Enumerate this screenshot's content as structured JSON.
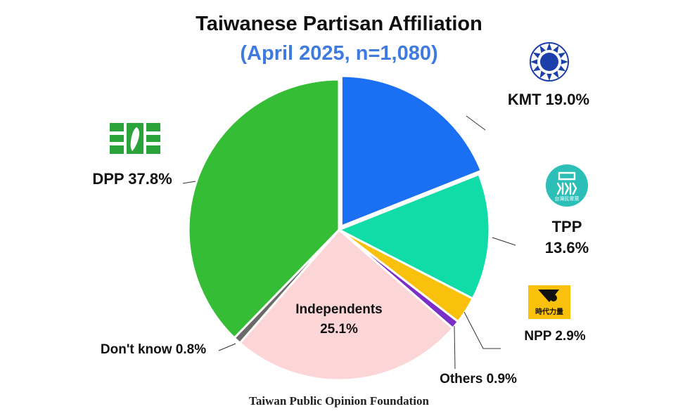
{
  "title": "Taiwanese Partisan Affiliation",
  "subtitle": "(April 2025, n=1,080)",
  "source": "Taiwan Public Opinion Foundation",
  "chart_data": {
    "type": "pie",
    "start_angle_deg": 0,
    "direction": "clockwise",
    "slices": [
      {
        "name": "KMT",
        "value": 19.0,
        "label": "KMT 19.0%",
        "color": "#1a6ff2"
      },
      {
        "name": "TPP",
        "value": 13.6,
        "label_line1": "TPP",
        "label_line2": "13.6%",
        "color": "#0fdca6"
      },
      {
        "name": "NPP",
        "value": 2.9,
        "label": "NPP 2.9%",
        "color": "#f9c00c"
      },
      {
        "name": "Others",
        "value": 0.9,
        "label": "Others 0.9%",
        "color": "#7a2fc8"
      },
      {
        "name": "Independents",
        "value": 25.1,
        "label_line1": "Independents",
        "label_line2": "25.1%",
        "color": "#fcd6d6"
      },
      {
        "name": "Don't know",
        "value": 0.8,
        "label": "Don't know 0.8%",
        "color": "#6a6a6a"
      },
      {
        "name": "DPP",
        "value": 37.8,
        "label": "DPP 37.8%",
        "color": "#35bd35"
      }
    ]
  },
  "logos": {
    "kmt": "kmt-sun-emblem-icon",
    "tpp": "tpp-party-logo-icon",
    "npp": "npp-party-logo-icon",
    "dpp": "dpp-flag-icon",
    "tpp_logo_text": "台灣民眾黨",
    "npp_logo_text": "時代力量"
  }
}
